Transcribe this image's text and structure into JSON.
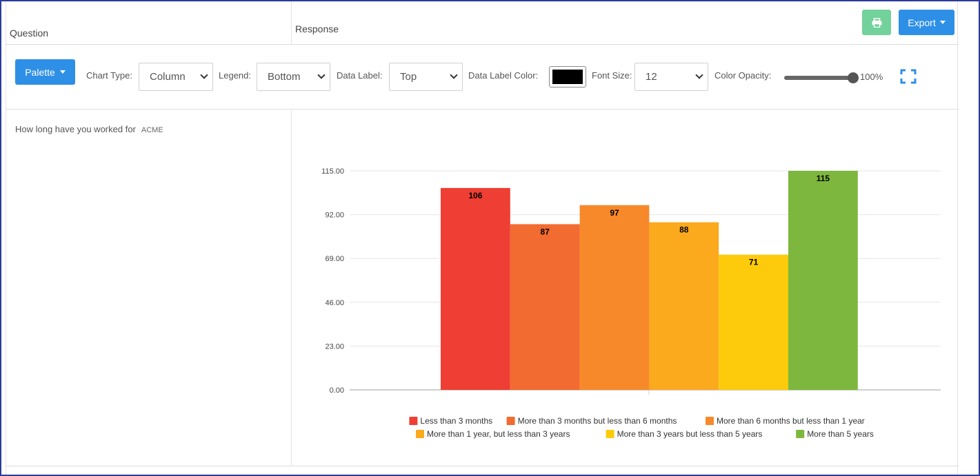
{
  "header": {
    "question_label": "Question",
    "response_label": "Response",
    "export_label": "Export",
    "print_icon": "print-icon"
  },
  "toolbar": {
    "palette_label": "Palette",
    "chart_type_label": "Chart Type:",
    "chart_type_value": "Column",
    "legend_label": "Legend:",
    "legend_value": "Bottom",
    "data_label_label": "Data Label:",
    "data_label_value": "Top",
    "data_label_color_label": "Data Label Color:",
    "data_label_color_value": "#000000",
    "font_size_label": "Font Size:",
    "font_size_value": "12",
    "color_opacity_label": "Color Opacity:",
    "color_opacity_value": "100%",
    "fullscreen_icon": "fullscreen-icon"
  },
  "question": {
    "text": "How long have you worked for",
    "tag": "ACME"
  },
  "colors": {
    "primary": "#2e8fe6",
    "print_button": "#73d19b"
  },
  "chart_data": {
    "type": "bar",
    "categories": [
      "Less than 3 months",
      "More than 3 months but less than 6 months",
      "More than 6 months but less than 1 year",
      "More than 1 year, but less than 3 years",
      "More than 3 years but less than 5 years",
      "More than 5 years"
    ],
    "values": [
      106,
      87,
      97,
      88,
      71,
      115
    ],
    "colors": [
      "#ef3e33",
      "#f26b30",
      "#f7892b",
      "#fba91d",
      "#fdcb0b",
      "#7db73d"
    ],
    "yticks": [
      "0.00",
      "23.00",
      "46.00",
      "69.00",
      "92.00",
      "115.00"
    ],
    "ylim": [
      0,
      115
    ],
    "legend_position": "bottom",
    "grid": true
  }
}
